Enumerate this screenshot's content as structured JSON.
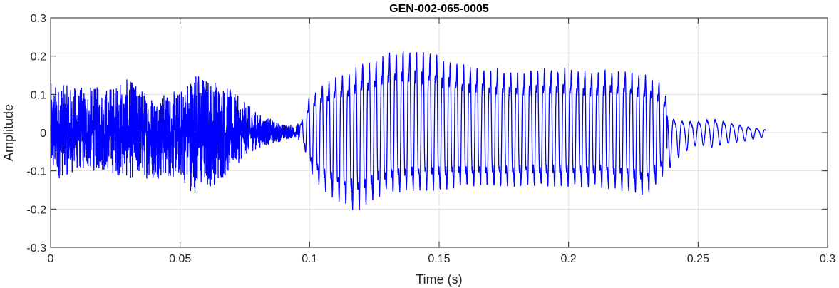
{
  "chart_data": {
    "type": "line",
    "title": "GEN-002-065-0005",
    "xlabel": "Time (s)",
    "ylabel": "Amplitude",
    "xlim": [
      0,
      0.3
    ],
    "ylim": [
      -0.3,
      0.3
    ],
    "grid": true,
    "xticks": [
      0,
      0.05,
      0.1,
      0.15,
      0.2,
      0.25,
      0.3
    ],
    "xtick_labels": [
      "0",
      "0.05",
      "0.1",
      "0.15",
      "0.2",
      "0.25",
      "0.3"
    ],
    "yticks": [
      -0.3,
      -0.2,
      -0.1,
      0,
      0.1,
      0.2,
      0.3
    ],
    "ytick_labels": [
      "-0.3",
      "-0.2",
      "-0.1",
      "0",
      "0.1",
      "0.2",
      "0.3"
    ],
    "series": [
      {
        "color": "#0000ff",
        "x_start": 0,
        "x_end": 0.276,
        "envelope": [
          {
            "t": 0.0,
            "max": 0.13,
            "min": -0.13
          },
          {
            "t": 0.01,
            "max": 0.12,
            "min": -0.1
          },
          {
            "t": 0.02,
            "max": 0.12,
            "min": -0.1
          },
          {
            "t": 0.03,
            "max": 0.14,
            "min": -0.12
          },
          {
            "t": 0.04,
            "max": 0.1,
            "min": -0.12
          },
          {
            "t": 0.05,
            "max": 0.11,
            "min": -0.12
          },
          {
            "t": 0.055,
            "max": 0.17,
            "min": -0.16
          },
          {
            "t": 0.06,
            "max": 0.15,
            "min": -0.15
          },
          {
            "t": 0.065,
            "max": 0.14,
            "min": -0.13
          },
          {
            "t": 0.07,
            "max": 0.11,
            "min": -0.1
          },
          {
            "t": 0.075,
            "max": 0.08,
            "min": -0.06
          },
          {
            "t": 0.08,
            "max": 0.05,
            "min": -0.04
          },
          {
            "t": 0.09,
            "max": 0.02,
            "min": -0.02
          },
          {
            "t": 0.095,
            "max": 0.02,
            "min": -0.01
          },
          {
            "t": 0.098,
            "max": 0.05,
            "min": -0.05
          },
          {
            "t": 0.1,
            "max": 0.12,
            "min": -0.12
          },
          {
            "t": 0.105,
            "max": 0.15,
            "min": -0.18
          },
          {
            "t": 0.11,
            "max": 0.18,
            "min": -0.21
          },
          {
            "t": 0.115,
            "max": 0.18,
            "min": -0.24
          },
          {
            "t": 0.12,
            "max": 0.22,
            "min": -0.24
          },
          {
            "t": 0.125,
            "max": 0.22,
            "min": -0.21
          },
          {
            "t": 0.13,
            "max": 0.25,
            "min": -0.19
          },
          {
            "t": 0.14,
            "max": 0.26,
            "min": -0.18
          },
          {
            "t": 0.15,
            "max": 0.24,
            "min": -0.18
          },
          {
            "t": 0.16,
            "max": 0.21,
            "min": -0.17
          },
          {
            "t": 0.17,
            "max": 0.2,
            "min": -0.17
          },
          {
            "t": 0.18,
            "max": 0.19,
            "min": -0.17
          },
          {
            "t": 0.19,
            "max": 0.2,
            "min": -0.17
          },
          {
            "t": 0.2,
            "max": 0.2,
            "min": -0.17
          },
          {
            "t": 0.21,
            "max": 0.19,
            "min": -0.17
          },
          {
            "t": 0.22,
            "max": 0.2,
            "min": -0.18
          },
          {
            "t": 0.23,
            "max": 0.18,
            "min": -0.2
          },
          {
            "t": 0.236,
            "max": 0.16,
            "min": -0.14
          },
          {
            "t": 0.24,
            "max": 0.05,
            "min": -0.08
          },
          {
            "t": 0.245,
            "max": 0.04,
            "min": -0.05
          },
          {
            "t": 0.25,
            "max": 0.04,
            "min": -0.03
          },
          {
            "t": 0.255,
            "max": 0.05,
            "min": -0.04
          },
          {
            "t": 0.26,
            "max": 0.04,
            "min": -0.03
          },
          {
            "t": 0.27,
            "max": 0.02,
            "min": -0.02
          },
          {
            "t": 0.276,
            "max": 0.01,
            "min": -0.01
          }
        ]
      }
    ]
  }
}
